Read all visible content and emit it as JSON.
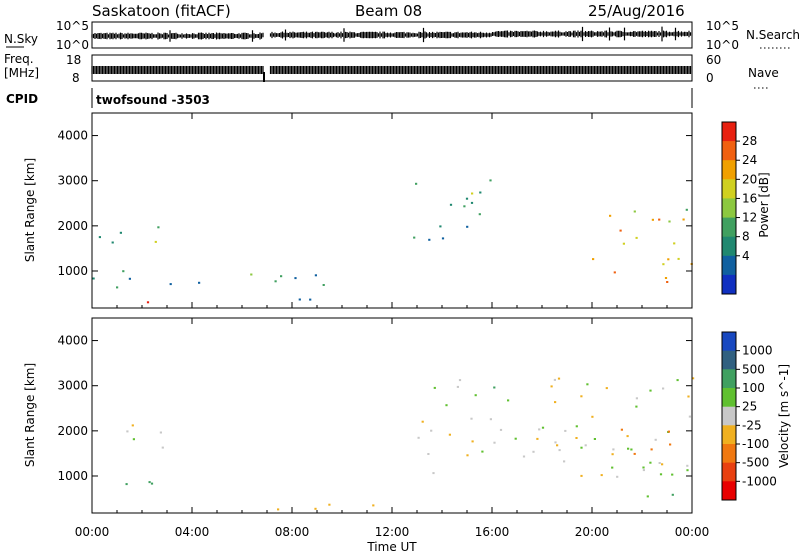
{
  "header": {
    "station": "Saskatoon (fitACF)",
    "beam": "Beam 08",
    "date": "25/Aug/2016"
  },
  "noise_panel": {
    "left_label": "N.Sky",
    "right_label": "N.Search",
    "left_ticks": [
      "10^5",
      "10^0"
    ],
    "right_ticks": [
      "10^5",
      "10^0"
    ]
  },
  "freq_panel": {
    "left_label": [
      "Freq.",
      "[MHz]"
    ],
    "right_label": "Nave",
    "left_ticks": [
      "18",
      "8"
    ],
    "right_ticks": [
      "60",
      "0"
    ]
  },
  "cpid": {
    "label": "CPID",
    "value": "twofsound  -3503"
  },
  "chart_data": [
    {
      "type": "heatmap",
      "title": "",
      "ylabel": "Slant Range [km]",
      "yticks": [
        "4000",
        "3000",
        "2000",
        "1000"
      ],
      "ylim": [
        180,
        4500
      ],
      "xlim": [
        "00:00",
        "24:00"
      ],
      "colorbar": {
        "label": "Power [dB]",
        "ticks": [
          "28",
          "24",
          "20",
          "16",
          "12",
          "8",
          "4"
        ],
        "colors": [
          "#e82010",
          "#f06010",
          "#f0a000",
          "#d0d020",
          "#8cc840",
          "#40a060",
          "#208870",
          "#1060a0",
          "#1030c0"
        ]
      },
      "echo_regions": [
        {
          "t": [
            0.05,
            3.8
          ],
          "r": [
            1650,
            2150
          ],
          "level": 12
        },
        {
          "t": [
            0.0,
            9.5
          ],
          "r": [
            650,
            1050
          ],
          "level": 10
        },
        {
          "t": [
            0.5,
            2.6
          ],
          "r": [
            200,
            350
          ],
          "level": 28
        },
        {
          "t": [
            12.8,
            16.0
          ],
          "r": [
            1700,
            3200
          ],
          "level": 8
        },
        {
          "t": [
            15.0,
            17.0
          ],
          "r": [
            2400,
            3000
          ],
          "level": 16
        },
        {
          "t": [
            18.0,
            24.0
          ],
          "r": [
            1500,
            2500
          ],
          "level": 20
        },
        {
          "t": [
            20.0,
            24.0
          ],
          "r": [
            700,
            1500
          ],
          "level": 24
        },
        {
          "t": [
            7.0,
            13.0
          ],
          "r": [
            180,
            400
          ],
          "level": 6
        }
      ]
    },
    {
      "type": "heatmap",
      "title": "",
      "ylabel": "Slant Range [km]",
      "yticks": [
        "4000",
        "3000",
        "2000",
        "1000"
      ],
      "ylim": [
        180,
        4500
      ],
      "xlim": [
        "00:00",
        "24:00"
      ],
      "xlabel": "Time UT",
      "xticks": [
        "00:00",
        "04:00",
        "08:00",
        "12:00",
        "16:00",
        "20:00",
        "00:00"
      ],
      "colorbar": {
        "label": "Velocity [m s^-1]",
        "ticks": [
          "1000",
          "500",
          "100",
          "25",
          "-25",
          "-100",
          "-500",
          "-1000"
        ],
        "colors": [
          "#1848c0",
          "#306080",
          "#40a060",
          "#60c030",
          "#c8c8c8",
          "#f0b020",
          "#f07810",
          "#e84010",
          "#e80000"
        ]
      },
      "echo_regions": [
        {
          "t": [
            0.05,
            3.8
          ],
          "r": [
            1650,
            2150
          ],
          "vel": 0
        },
        {
          "t": [
            0.0,
            2.5
          ],
          "r": [
            500,
            1000
          ],
          "vel": 100
        },
        {
          "t": [
            7.0,
            13.0
          ],
          "r": [
            180,
            400
          ],
          "vel": -50
        },
        {
          "t": [
            15.0,
            16.5
          ],
          "r": [
            2400,
            3100
          ],
          "vel": 300
        },
        {
          "t": [
            13.0,
            24.0
          ],
          "r": [
            1000,
            3200
          ],
          "vel": 0
        },
        {
          "t": [
            21.0,
            24.0
          ],
          "r": [
            1500,
            2200
          ],
          "vel": -200
        },
        {
          "t": [
            22.0,
            24.0
          ],
          "r": [
            500,
            1100
          ],
          "vel": 100
        }
      ]
    }
  ]
}
